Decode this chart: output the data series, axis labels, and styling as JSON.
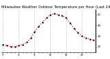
{
  "title": "Milwaukee Weather Outdoor Temperature per Hour (Last 24 Hours)",
  "hours": [
    0,
    1,
    2,
    3,
    4,
    5,
    6,
    7,
    8,
    9,
    10,
    11,
    12,
    13,
    14,
    15,
    16,
    17,
    18,
    19,
    20,
    21,
    22,
    23
  ],
  "temps": [
    22,
    21,
    20,
    20,
    21,
    22,
    24,
    28,
    34,
    39,
    43,
    47,
    50,
    51,
    50,
    49,
    47,
    42,
    37,
    33,
    30,
    28,
    27,
    26
  ],
  "line_color": "#ff0000",
  "marker_color": "#000000",
  "bg_color": "#ffffff",
  "ylim": [
    15,
    55
  ],
  "yticks": [
    20,
    30,
    40,
    50
  ],
  "grid_color": "#bbbbbb",
  "grid_x_positions": [
    0,
    4,
    8,
    12,
    16,
    20
  ],
  "title_fontsize": 3.8,
  "tick_fontsize": 2.8
}
